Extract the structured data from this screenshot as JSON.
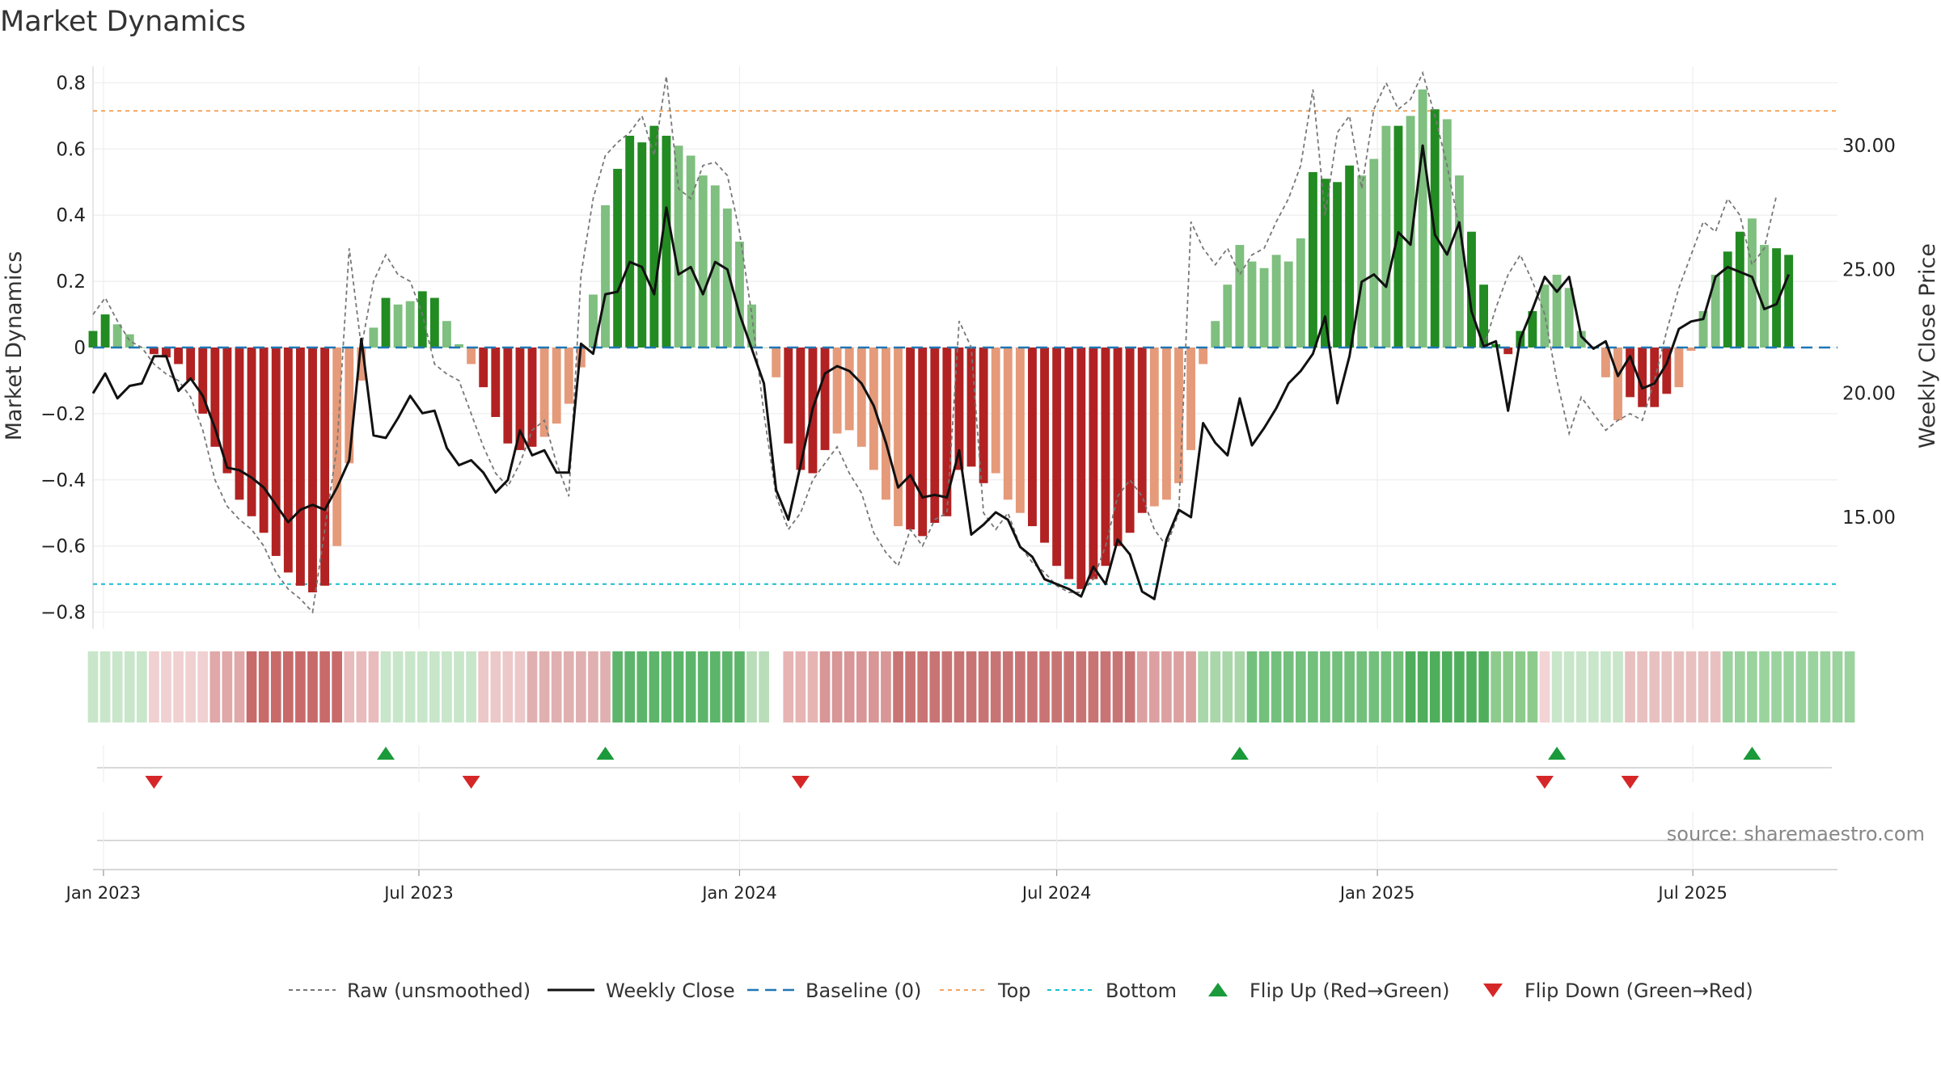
{
  "title": "Market Dynamics",
  "source": "source: sharemaestro.com",
  "colors": {
    "strong_green": "#228B22",
    "light_green": "#7FBF7F",
    "strong_red": "#B22222",
    "light_red": "#E59A7A",
    "raw_line": "#777777",
    "close_line": "#111111",
    "baseline": "#1f77b4",
    "top": "#F4A460",
    "bottom": "#17BECF",
    "flip_up": "#1a9a3a",
    "flip_down": "#d62728"
  },
  "legend": [
    {
      "key": "raw",
      "label": "Raw (unsmoothed)"
    },
    {
      "key": "close",
      "label": "Weekly Close"
    },
    {
      "key": "baseline",
      "label": "Baseline (0)"
    },
    {
      "key": "top",
      "label": "Top"
    },
    {
      "key": "bottom",
      "label": "Bottom"
    },
    {
      "key": "flip_up",
      "label": "Flip Up (Red→Green)"
    },
    {
      "key": "flip_down",
      "label": "Flip Down (Green→Red)"
    }
  ],
  "chart_data": {
    "type": "bar",
    "title": "Market Dynamics",
    "ylabel": "Market Dynamics",
    "ylabel_right": "Weekly Close Price",
    "ylim": [
      -0.85,
      0.85
    ],
    "ylim_right": [
      10.5,
      33.2
    ],
    "yticks": [
      0.8,
      0.6,
      0.4,
      0.2,
      0,
      -0.2,
      -0.4,
      -0.6,
      -0.8
    ],
    "yticks_labels": [
      "0.8",
      "0.6",
      "0.4",
      "0.2",
      "0",
      "−0.2",
      "−0.4",
      "−0.6",
      "−0.8"
    ],
    "yticks_right": [
      30,
      25,
      20,
      15
    ],
    "yticks_right_labels": [
      "30.00",
      "25.00",
      "20.00",
      "15.00"
    ],
    "x_start": "2022-12-26",
    "x_end": "2025-09-22",
    "xticks": [
      "2023-01-01",
      "2023-07-01",
      "2024-01-01",
      "2024-07-01",
      "2025-01-01",
      "2025-07-01"
    ],
    "xtick_labels": [
      "Jan 2023",
      "Jul 2023",
      "Jan 2024",
      "Jul 2024",
      "Jan 2025",
      "Jul 2025"
    ],
    "top_line": 0.715,
    "bottom_line": -0.715,
    "baseline": 0,
    "week_start": "2022-12-26",
    "weekly_values": [
      0.05,
      0.1,
      0.07,
      0.04,
      0.0,
      -0.02,
      -0.03,
      -0.05,
      -0.1,
      -0.2,
      -0.3,
      -0.38,
      -0.46,
      -0.51,
      -0.56,
      -0.63,
      -0.68,
      -0.72,
      -0.74,
      -0.72,
      -0.6,
      -0.35,
      -0.1,
      0.06,
      0.15,
      0.13,
      0.14,
      0.17,
      0.15,
      0.08,
      0.01,
      -0.05,
      -0.12,
      -0.21,
      -0.29,
      -0.31,
      -0.3,
      -0.27,
      -0.23,
      -0.17,
      -0.06,
      0.16,
      0.43,
      0.54,
      0.64,
      0.62,
      0.67,
      0.64,
      0.61,
      0.58,
      0.52,
      0.49,
      0.42,
      0.32,
      0.13,
      0.0,
      -0.09,
      -0.29,
      -0.37,
      -0.38,
      -0.31,
      -0.26,
      -0.25,
      -0.3,
      -0.37,
      -0.46,
      -0.54,
      -0.55,
      -0.57,
      -0.53,
      -0.51,
      -0.37,
      -0.36,
      -0.41,
      -0.38,
      -0.46,
      -0.5,
      -0.54,
      -0.59,
      -0.66,
      -0.7,
      -0.73,
      -0.7,
      -0.66,
      -0.6,
      -0.56,
      -0.5,
      -0.48,
      -0.46,
      -0.41,
      -0.31,
      -0.05,
      0.08,
      0.19,
      0.31,
      0.26,
      0.24,
      0.28,
      0.26,
      0.33,
      0.53,
      0.51,
      0.5,
      0.55,
      0.52,
      0.57,
      0.67,
      0.67,
      0.7,
      0.78,
      0.72,
      0.69,
      0.52,
      0.35,
      0.19,
      0.01,
      -0.02,
      0.05,
      0.11,
      0.19,
      0.22,
      0.18,
      0.05,
      0.0,
      -0.09,
      -0.22,
      -0.15,
      -0.18,
      -0.18,
      -0.14,
      -0.12,
      -0.01,
      0.11,
      0.22,
      0.29,
      0.35,
      0.39,
      0.31,
      0.3,
      0.28
    ],
    "bar_shades": "SSLLLSSSSSSSSSSSSSSSLLLLSLLSSLLLSSSSSLLLLLLSSSSSLLLLLLLLLSSSSLLLLLLSSSSSSSLLLSSSSSSSSSSLLLLLLLLLLLLLSSSSLLLSLLSLLSSSSSSLLLLLLLSSSSLLLLSSLLSSLLLLSSSSSLLL",
    "raw_values": [
      0.1,
      0.15,
      0.08,
      0.02,
      0.0,
      -0.05,
      -0.08,
      -0.1,
      -0.15,
      -0.25,
      -0.4,
      -0.48,
      -0.52,
      -0.55,
      -0.6,
      -0.68,
      -0.73,
      -0.76,
      -0.8,
      -0.55,
      -0.3,
      0.3,
      0.0,
      0.2,
      0.28,
      0.22,
      0.2,
      0.1,
      -0.05,
      -0.08,
      -0.1,
      -0.2,
      -0.3,
      -0.38,
      -0.42,
      -0.35,
      -0.25,
      -0.22,
      -0.35,
      -0.45,
      0.22,
      0.45,
      0.58,
      0.62,
      0.65,
      0.7,
      0.58,
      0.82,
      0.48,
      0.45,
      0.55,
      0.56,
      0.52,
      0.35,
      0.1,
      -0.2,
      -0.45,
      -0.55,
      -0.5,
      -0.4,
      -0.35,
      -0.3,
      -0.38,
      -0.44,
      -0.56,
      -0.62,
      -0.66,
      -0.55,
      -0.6,
      -0.52,
      -0.5,
      0.08,
      0.0,
      -0.5,
      -0.55,
      -0.5,
      -0.6,
      -0.65,
      -0.68,
      -0.72,
      -0.74,
      -0.74,
      -0.7,
      -0.6,
      -0.45,
      -0.4,
      -0.45,
      -0.55,
      -0.6,
      -0.5,
      0.38,
      0.3,
      0.25,
      0.3,
      0.22,
      0.28,
      0.3,
      0.38,
      0.45,
      0.55,
      0.78,
      0.4,
      0.65,
      0.7,
      0.48,
      0.72,
      0.8,
      0.72,
      0.75,
      0.83,
      0.7,
      0.55,
      0.36,
      0.1,
      0.0,
      0.12,
      0.22,
      0.28,
      0.2,
      0.1,
      -0.1,
      -0.26,
      -0.15,
      -0.2,
      -0.25,
      -0.22,
      -0.2,
      -0.22,
      -0.1,
      0.05,
      0.18,
      0.28,
      0.38,
      0.35,
      0.45,
      0.4,
      0.25,
      0.3,
      0.46
    ],
    "close_values": [
      20.0,
      20.8,
      19.8,
      20.3,
      20.4,
      21.5,
      21.5,
      20.1,
      20.6,
      19.9,
      18.6,
      17.0,
      16.9,
      16.6,
      16.2,
      15.5,
      14.8,
      15.3,
      15.5,
      15.3,
      16.2,
      17.3,
      22.2,
      18.3,
      18.2,
      19.0,
      19.9,
      19.2,
      19.3,
      17.8,
      17.1,
      17.3,
      16.8,
      16.0,
      16.5,
      18.5,
      17.5,
      17.7,
      16.8,
      16.8,
      22.0,
      21.6,
      24.0,
      24.1,
      25.3,
      25.1,
      24.0,
      27.5,
      24.8,
      25.1,
      24.0,
      25.3,
      25.0,
      23.2,
      21.8,
      20.4,
      16.1,
      14.9,
      17.1,
      19.4,
      20.8,
      21.1,
      20.9,
      20.4,
      19.5,
      18.0,
      16.2,
      16.7,
      15.8,
      15.9,
      15.8,
      17.7,
      14.3,
      14.7,
      15.2,
      14.9,
      13.8,
      13.4,
      12.5,
      12.3,
      12.1,
      11.8,
      13.0,
      12.3,
      14.1,
      13.5,
      12.0,
      11.7,
      14.1,
      15.3,
      15.0,
      18.8,
      18.0,
      17.5,
      19.8,
      17.9,
      18.6,
      19.4,
      20.4,
      20.9,
      21.6,
      23.1,
      19.6,
      21.5,
      24.5,
      24.8,
      24.3,
      26.5,
      26.0,
      30.0,
      26.4,
      25.6,
      26.9,
      23.3,
      21.9,
      22.1,
      19.3,
      22.2,
      23.4,
      24.7,
      24.1,
      24.7,
      22.3,
      21.8,
      22.1,
      20.7,
      21.5,
      20.2,
      20.4,
      21.2,
      22.6,
      22.9,
      23.0,
      24.7,
      25.1,
      24.9,
      24.7,
      23.4,
      23.6,
      24.8
    ],
    "flip_up_dates": [
      "2023-06-12",
      "2023-10-16",
      "2024-10-14",
      "2025-04-14",
      "2025-08-04"
    ],
    "flip_down_dates": [
      "2023-01-30",
      "2023-07-31",
      "2024-02-05",
      "2025-04-07",
      "2025-05-26"
    ],
    "strip_gap_weeks": [
      56
    ],
    "regime_strip": [
      {
        "start": 0,
        "end": 5,
        "color": "#c8e6c9"
      },
      {
        "start": 5,
        "end": 10,
        "color": "#f0d0d0"
      },
      {
        "start": 10,
        "end": 13,
        "color": "#e0a8a8"
      },
      {
        "start": 13,
        "end": 21,
        "color": "#c86a6a"
      },
      {
        "start": 21,
        "end": 24,
        "color": "#e8bcbc"
      },
      {
        "start": 24,
        "end": 32,
        "color": "#c8e6c9"
      },
      {
        "start": 32,
        "end": 36,
        "color": "#ecc8c8"
      },
      {
        "start": 36,
        "end": 43,
        "color": "#e0b0b0"
      },
      {
        "start": 43,
        "end": 54,
        "color": "#5cb56a"
      },
      {
        "start": 54,
        "end": 56,
        "color": "#b8ddb8"
      },
      {
        "start": 56,
        "end": 57,
        "color": "#f2d4d4"
      },
      {
        "start": 57,
        "end": 60,
        "color": "#e7b4b4"
      },
      {
        "start": 60,
        "end": 66,
        "color": "#d89696"
      },
      {
        "start": 66,
        "end": 86,
        "color": "#c97474"
      },
      {
        "start": 86,
        "end": 91,
        "color": "#dca0a0"
      },
      {
        "start": 91,
        "end": 95,
        "color": "#a9d7a9"
      },
      {
        "start": 95,
        "end": 108,
        "color": "#72c07c"
      },
      {
        "start": 108,
        "end": 115,
        "color": "#4fae5c"
      },
      {
        "start": 115,
        "end": 119,
        "color": "#8ccb8c"
      },
      {
        "start": 119,
        "end": 120,
        "color": "#f2d4d4"
      },
      {
        "start": 120,
        "end": 126,
        "color": "#c8e6c9"
      },
      {
        "start": 126,
        "end": 134,
        "color": "#e8c0c0"
      },
      {
        "start": 134,
        "end": 145,
        "color": "#9ad39e"
      }
    ]
  }
}
